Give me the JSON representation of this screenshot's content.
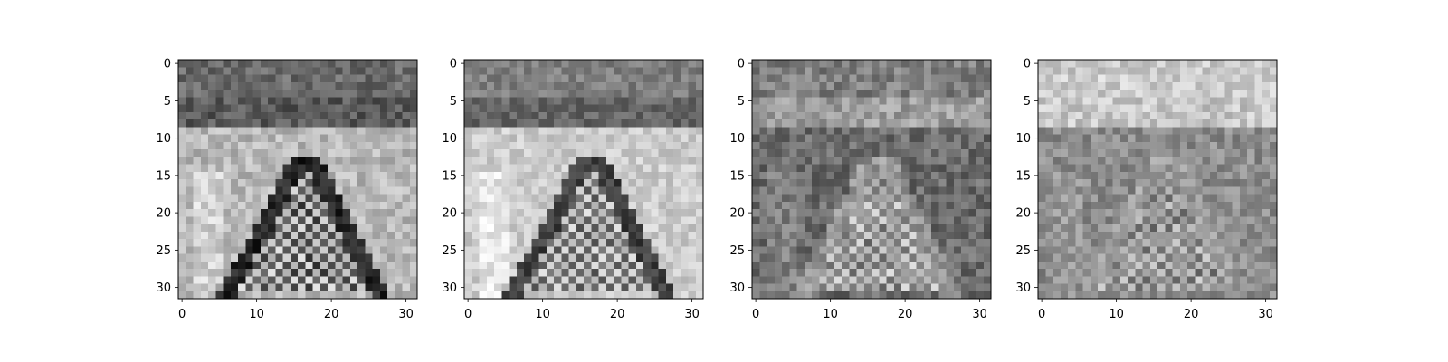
{
  "chart_data": [
    {
      "type": "heatmap",
      "title": "",
      "xlabel": "",
      "ylabel": "",
      "colormap": "gray",
      "grid": false,
      "matrix_size": [
        32,
        32
      ],
      "x_ticks": [
        0,
        10,
        20,
        30
      ],
      "y_ticks": [
        0,
        5,
        10,
        15,
        20,
        25,
        30
      ],
      "pattern": {
        "top_band": 0.42,
        "mid_band": 0.35,
        "mid_band_end_row": 9,
        "background": 0.72,
        "left_wedge": 0.82,
        "checker_light": 0.78,
        "checker_dark": 0.3,
        "edge": 0.15,
        "noise": 0.12,
        "seed": 11
      }
    },
    {
      "type": "heatmap",
      "title": "",
      "xlabel": "",
      "ylabel": "",
      "colormap": "gray",
      "grid": false,
      "matrix_size": [
        32,
        32
      ],
      "x_ticks": [
        0,
        10,
        20,
        30
      ],
      "y_ticks": [
        0,
        5,
        10,
        15,
        20,
        25,
        30
      ],
      "pattern": {
        "top_band": 0.5,
        "mid_band": 0.4,
        "mid_band_end_row": 9,
        "background": 0.8,
        "left_wedge": 0.9,
        "checker_light": 0.8,
        "checker_dark": 0.4,
        "edge": 0.25,
        "noise": 0.1,
        "seed": 23
      }
    },
    {
      "type": "heatmap",
      "title": "",
      "xlabel": "",
      "ylabel": "",
      "colormap": "gray",
      "grid": false,
      "matrix_size": [
        32,
        32
      ],
      "x_ticks": [
        0,
        10,
        20,
        30
      ],
      "y_ticks": [
        0,
        5,
        10,
        15,
        20,
        25,
        30
      ],
      "pattern": {
        "top_band": 0.5,
        "mid_band": 0.62,
        "mid_band_end_row": 9,
        "background": 0.42,
        "left_wedge": 0.5,
        "checker_light": 0.75,
        "checker_dark": 0.5,
        "edge": 0.6,
        "noise": 0.13,
        "seed": 37
      }
    },
    {
      "type": "heatmap",
      "title": "",
      "xlabel": "",
      "ylabel": "",
      "colormap": "gray",
      "grid": false,
      "matrix_size": [
        32,
        32
      ],
      "x_ticks": [
        0,
        10,
        20,
        30
      ],
      "y_ticks": [
        0,
        5,
        10,
        15,
        20,
        25,
        30
      ],
      "pattern": {
        "top_band": 0.8,
        "mid_band": 0.78,
        "mid_band_end_row": 9,
        "background": 0.55,
        "left_wedge": 0.6,
        "checker_light": 0.72,
        "checker_dark": 0.48,
        "edge": 0.62,
        "noise": 0.12,
        "seed": 53
      }
    }
  ]
}
